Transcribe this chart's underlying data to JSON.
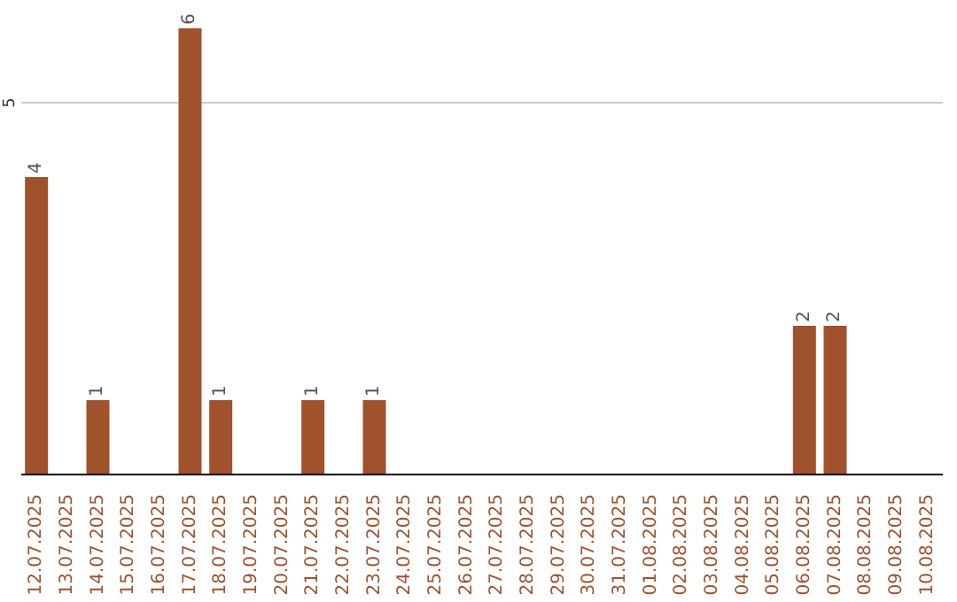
{
  "chart_data": {
    "type": "bar",
    "categories": [
      "12.07.2025",
      "13.07.2025",
      "14.07.2025",
      "15.07.2025",
      "16.07.2025",
      "17.07.2025",
      "18.07.2025",
      "19.07.2025",
      "20.07.2025",
      "21.07.2025",
      "22.07.2025",
      "23.07.2025",
      "24.07.2025",
      "25.07.2025",
      "26.07.2025",
      "27.07.2025",
      "28.07.2025",
      "29.07.2025",
      "30.07.2025",
      "31.07.2025",
      "01.08.2025",
      "02.08.2025",
      "03.08.2025",
      "04.08.2025",
      "05.08.2025",
      "06.08.2025",
      "07.08.2025",
      "08.08.2025",
      "09.08.2025",
      "10.08.2025"
    ],
    "values": [
      4,
      0,
      1,
      0,
      0,
      6,
      1,
      0,
      0,
      1,
      0,
      1,
      0,
      0,
      0,
      0,
      0,
      0,
      0,
      0,
      0,
      0,
      0,
      0,
      0,
      2,
      2,
      0,
      0,
      0
    ],
    "value_labels": [
      "4",
      null,
      "1",
      null,
      null,
      "6",
      "1",
      null,
      null,
      "1",
      null,
      "1",
      null,
      null,
      null,
      null,
      null,
      null,
      null,
      null,
      null,
      null,
      null,
      null,
      null,
      "2",
      "2",
      null,
      null,
      null
    ],
    "color": "#a0522d",
    "ylim": [
      0,
      6
    ],
    "yticks": [
      5
    ],
    "grid": "y",
    "legend": false
  }
}
